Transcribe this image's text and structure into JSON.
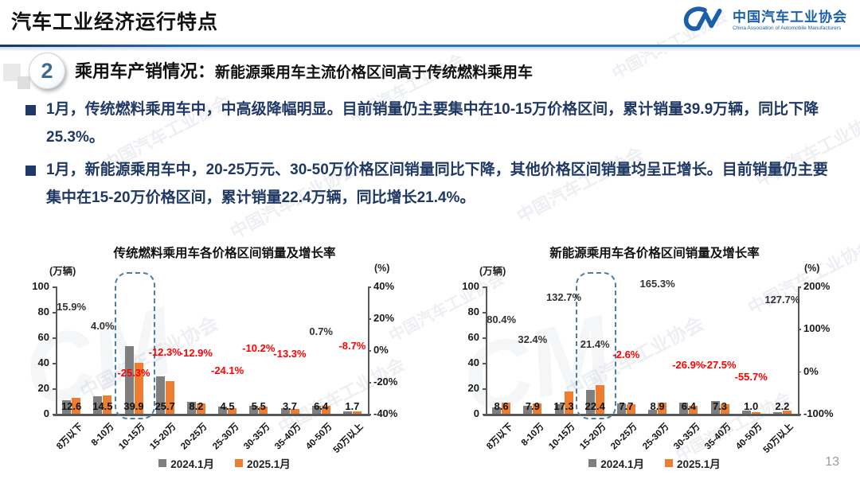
{
  "header": {
    "title": "汽车工业经济运行特点",
    "logo": {
      "mark": "CM-swoosh",
      "org_cn": "中国汽车工业协会",
      "org_en": "China Association of Automobile Manufacturers"
    }
  },
  "section": {
    "number": "2",
    "title": "乘用车产销情况：",
    "subtitle": "新能源乘用车主流价格区间高于传统燃料乘用车"
  },
  "bullets": [
    "1月，传统燃料乘用车中，中高级降幅明显。目前销量仍主要集中在10-15万价格区间，累计销量39.9万辆，同比下降25.3%。",
    "1月，新能源乘用车中，20-25万元、30-50万价格区间销量同比下降，其他价格区间销量均呈正增长。目前销量仍主要集中在15-20万价格区间，累计销量22.4万辆，同比增长21.4%。"
  ],
  "page_number": "13",
  "watermark": {
    "text": "中国汽车工业协会"
  },
  "colors": {
    "bar_2024": "#7F7F7F",
    "bar_2025": "#ED7D31",
    "negative_label": "#FF0000",
    "positive_label": "#333333",
    "highlight_box": "#4D7EA8",
    "accent_blue": "#2E74B5",
    "text_navy": "#1F3864",
    "logo_blue": "#1B5FAA"
  },
  "chart_data": [
    {
      "type": "bar",
      "title": "传统燃料乘用车各价格区间销量及增长率",
      "left_axis_unit": "(万辆)",
      "right_axis_unit": "(%)",
      "left_ticks": [
        0,
        20,
        40,
        60,
        80,
        100
      ],
      "left_range": [
        0,
        100
      ],
      "right_ticks": [
        "40%",
        "20%",
        "0%",
        "-20%",
        "-40%"
      ],
      "right_range": [
        -40,
        40
      ],
      "grid": false,
      "legend_position": "bottom",
      "categories": [
        "8万以下",
        "8-10万",
        "10-15万",
        "15-20万",
        "20-25万",
        "25-30万",
        "30-35万",
        "35-40万",
        "40-50万",
        "50万以上"
      ],
      "series": [
        {
          "name": "2024.1月",
          "values": [
            10.9,
            13.9,
            53.4,
            29.3,
            9.4,
            5.9,
            6.1,
            4.3,
            6.4,
            1.9
          ],
          "values_estimated_from_growth": true
        },
        {
          "name": "2025.1月",
          "values": [
            12.6,
            14.5,
            39.9,
            25.7,
            8.2,
            4.5,
            5.5,
            3.7,
            6.4,
            1.7
          ],
          "labeled": true
        }
      ],
      "growth_pct": [
        15.9,
        4.0,
        -25.3,
        -12.3,
        -12.9,
        -24.1,
        -10.2,
        -13.3,
        0.7,
        -8.7
      ],
      "highlight_category": "10-15万"
    },
    {
      "type": "bar",
      "title": "新能源乘用车各价格区间销量及增长率",
      "left_axis_unit": "(万辆)",
      "right_axis_unit": "(%)",
      "left_ticks": [
        0,
        20,
        40,
        60,
        80,
        100
      ],
      "left_range": [
        0,
        100
      ],
      "right_ticks": [
        "200%",
        "100%",
        "0%",
        "-100%"
      ],
      "right_range": [
        -100,
        200
      ],
      "grid": false,
      "legend_position": "bottom",
      "categories": [
        "8万以下",
        "8-10万",
        "10-15万",
        "15-20万",
        "20-25万",
        "25-30万",
        "30-35万",
        "35-40万",
        "40-50万",
        "50万以上"
      ],
      "series": [
        {
          "name": "2024.1月",
          "values": [
            4.8,
            6.0,
            7.4,
            18.5,
            7.9,
            3.4,
            8.8,
            10.1,
            2.3,
            1.0
          ],
          "values_estimated_from_growth": true
        },
        {
          "name": "2025.1月",
          "values": [
            8.6,
            7.9,
            17.3,
            22.4,
            7.7,
            8.9,
            6.4,
            7.3,
            1.0,
            2.2
          ],
          "labeled": true
        }
      ],
      "growth_pct": [
        80.4,
        32.4,
        132.7,
        21.4,
        -2.6,
        165.3,
        -26.9,
        -27.5,
        -55.7,
        127.7
      ],
      "highlight_category": "15-20万"
    }
  ]
}
